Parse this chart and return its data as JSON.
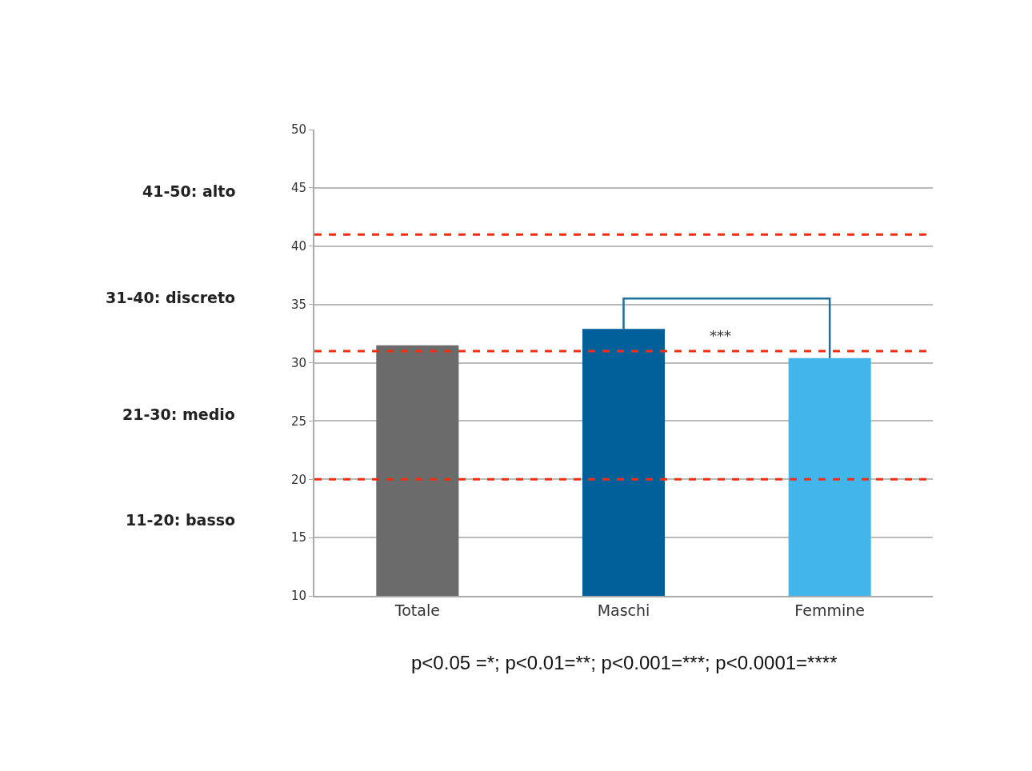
{
  "chart_data": {
    "type": "bar",
    "categories": [
      "Totale",
      "Maschi",
      "Femmine"
    ],
    "values": [
      31.5,
      32.9,
      30.4
    ],
    "colors": [
      "#6b6b6b",
      "#01609a",
      "#42b5ea"
    ],
    "ylim": [
      10,
      50
    ],
    "yticks": [
      10,
      15,
      20,
      25,
      30,
      35,
      40,
      45,
      50
    ],
    "grid": "y",
    "ref_lines": [
      {
        "axis": "y",
        "value": 41,
        "color": "#ff2a14",
        "line_style": "dashed"
      },
      {
        "axis": "y",
        "value": 31,
        "color": "#ff2a14",
        "line_style": "dashed"
      },
      {
        "axis": "y",
        "value": 20,
        "color": "#ff2a14",
        "line_style": "dashed"
      }
    ],
    "annotations": [
      "41-50: alto",
      "31-40: discreto",
      "21-30: medio",
      "11-20: basso",
      "***",
      "p<0.05 =*; p<0.01=**; p<0.001=***; p<0.0001=****"
    ]
  }
}
